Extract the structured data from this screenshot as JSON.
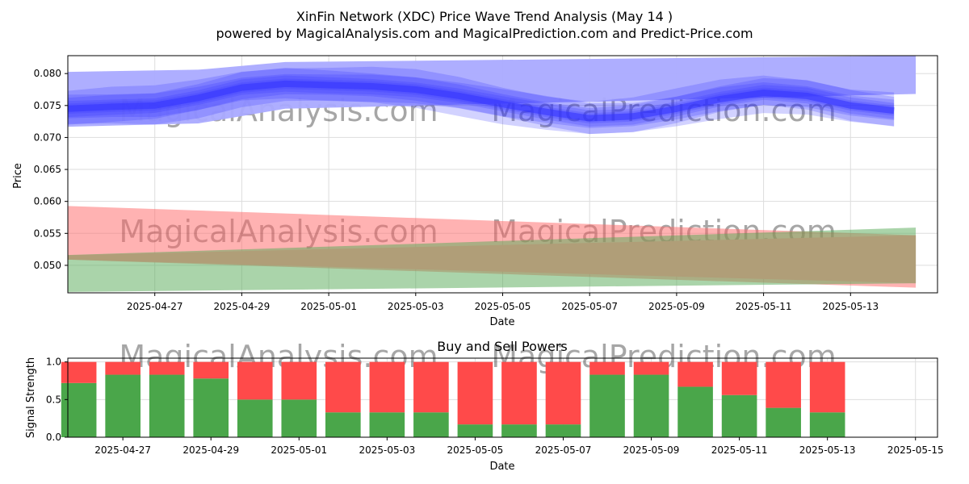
{
  "title": "XinFin Network (XDC) Price Wave Trend Analysis (May 14 )",
  "subtitle": "powered by MagicalAnalysis.com and MagicalPrediction.com and Predict-Price.com",
  "watermarks": [
    "MagicalAnalysis.com",
    "MagicalPrediction.com"
  ],
  "colors": {
    "wave": "#3333ff",
    "wave_band": "#aaaaff",
    "sell_band": "#ff6666",
    "buy_band": "#55aa55",
    "overlap": "#b09e78",
    "buy_bar": "#4aa64a",
    "sell_bar": "#ff4a4a",
    "grid": "#dddddd"
  },
  "chart_data": [
    {
      "type": "area",
      "name": "price-wave",
      "title": "",
      "xlabel": "Date",
      "ylabel": "Price",
      "grid": true,
      "ylim": [
        0.0457,
        0.0828
      ],
      "xlim": [
        "2025-04-25T00:00",
        "2025-05-15T00:00"
      ],
      "x_ticks": [
        "2025-04-27",
        "2025-04-29",
        "2025-05-01",
        "2025-05-03",
        "2025-05-05",
        "2025-05-07",
        "2025-05-09",
        "2025-05-11",
        "2025-05-13"
      ],
      "y_ticks": [
        "0.050",
        "0.055",
        "0.060",
        "0.065",
        "0.070",
        "0.075",
        "0.080"
      ],
      "wave_center": {
        "x": [
          "2025-04-25",
          "2025-04-26",
          "2025-04-27",
          "2025-04-28",
          "2025-04-29",
          "2025-04-30",
          "2025-05-01",
          "2025-05-02",
          "2025-05-03",
          "2025-05-04",
          "2025-05-05",
          "2025-05-06",
          "2025-05-07",
          "2025-05-08",
          "2025-05-09",
          "2025-05-10",
          "2025-05-11",
          "2025-05-12",
          "2025-05-13",
          "2025-05-14"
        ],
        "y": [
          0.0745,
          0.0748,
          0.075,
          0.0762,
          0.0778,
          0.0784,
          0.0782,
          0.078,
          0.0775,
          0.0765,
          0.0752,
          0.074,
          0.073,
          0.0733,
          0.0745,
          0.076,
          0.077,
          0.0765,
          0.075,
          0.0742
        ]
      },
      "wave_envelope": {
        "x": [
          "2025-04-24T12:00",
          "2025-04-28",
          "2025-04-30",
          "2025-05-14T12:00"
        ],
        "upper": [
          0.0802,
          0.0806,
          0.0818,
          0.0828
        ],
        "lower": [
          0.0716,
          0.0722,
          0.0745,
          0.0768
        ]
      },
      "sell_band": {
        "x": [
          "2025-04-24T12:00",
          "2025-05-14T12:00"
        ],
        "upper": [
          0.0594,
          0.0547
        ],
        "lower": [
          0.051,
          0.0465
        ]
      },
      "buy_band": {
        "x": [
          "2025-04-24T12:00",
          "2025-05-14T12:00"
        ],
        "upper": [
          0.0515,
          0.0559
        ],
        "lower": [
          0.0458,
          0.0472
        ]
      }
    },
    {
      "type": "bar",
      "name": "signal-strength",
      "title": "Buy and Sell Powers",
      "xlabel": "Date",
      "ylabel": "Signal Strength",
      "grid": true,
      "ylim": [
        0,
        1.05
      ],
      "xlim": [
        "2025-04-25T18:00",
        "2025-05-15T12:00"
      ],
      "x_ticks": [
        "2025-04-27",
        "2025-04-29",
        "2025-05-01",
        "2025-05-03",
        "2025-05-05",
        "2025-05-07",
        "2025-05-09",
        "2025-05-11",
        "2025-05-13",
        "2025-05-15"
      ],
      "y_ticks": [
        "0.0",
        "0.5",
        "1.0"
      ],
      "categories": [
        "2025-04-26",
        "2025-04-27",
        "2025-04-28",
        "2025-04-29",
        "2025-04-30",
        "2025-05-01",
        "2025-05-02",
        "2025-05-03",
        "2025-05-04",
        "2025-05-05",
        "2025-05-06",
        "2025-05-07",
        "2025-05-08",
        "2025-05-09",
        "2025-05-10",
        "2025-05-11",
        "2025-05-12",
        "2025-05-13",
        "2025-05-14"
      ],
      "series": [
        {
          "values": [
            0.72,
            0.83,
            0.83,
            0.78,
            0.5,
            0.5,
            0.33,
            0.33,
            0.33,
            0.17,
            0.17,
            0.17,
            0.83,
            0.83,
            0.67,
            0.56,
            0.39,
            0.33,
            0.0
          ]
        },
        {
          "values": [
            0.28,
            0.17,
            0.17,
            0.22,
            0.5,
            0.5,
            0.67,
            0.67,
            0.67,
            0.83,
            0.83,
            0.83,
            0.17,
            0.17,
            0.33,
            0.44,
            0.61,
            0.67,
            0.0
          ]
        }
      ]
    }
  ]
}
